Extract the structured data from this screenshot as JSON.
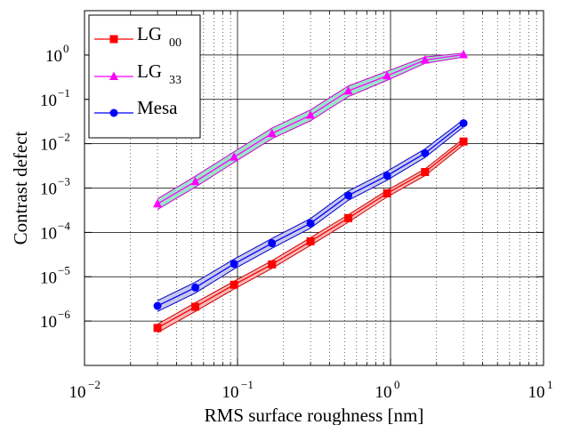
{
  "chart_data": {
    "type": "line",
    "xlabel": "RMS surface roughness [nm]",
    "ylabel": "Contrast defect",
    "x_scale": "log",
    "y_scale": "log",
    "xlim": [
      0.01,
      10
    ],
    "ylim": [
      1e-07,
      10
    ],
    "grid": true,
    "legend_position": "top-left",
    "x_ticks": [
      {
        "base": "10",
        "exp": "−2",
        "value": 0.01
      },
      {
        "base": "10",
        "exp": "−1",
        "value": 0.1
      },
      {
        "base": "10",
        "exp": "0",
        "value": 1
      },
      {
        "base": "10",
        "exp": "1",
        "value": 10
      }
    ],
    "y_ticks": [
      {
        "base": "10",
        "exp": "−6",
        "value": 1e-06
      },
      {
        "base": "10",
        "exp": "−5",
        "value": 1e-05
      },
      {
        "base": "10",
        "exp": "−4",
        "value": 0.0001
      },
      {
        "base": "10",
        "exp": "−3",
        "value": 0.001
      },
      {
        "base": "10",
        "exp": "−2",
        "value": 0.01
      },
      {
        "base": "10",
        "exp": "−1",
        "value": 0.1
      },
      {
        "base": "10",
        "exp": "0",
        "value": 1
      }
    ],
    "x": [
      0.03,
      0.053,
      0.095,
      0.168,
      0.3,
      0.53,
      0.95,
      1.68,
      3.0
    ],
    "series": [
      {
        "name": "LG00",
        "name_main": "LG",
        "name_sub": "00",
        "color": "#ff0000",
        "line_color": "#cc0000",
        "band_fill": "#f4b8b8",
        "marker": "square",
        "values": [
          7e-07,
          2.1e-06,
          6.6e-06,
          1.9e-05,
          6.3e-05,
          0.00021,
          0.00076,
          0.0023,
          0.0112
        ],
        "upper": [
          8.5e-07,
          2.6e-06,
          7.9e-06,
          2.3e-05,
          7.6e-05,
          0.00025,
          0.00089,
          0.0027,
          0.013
        ],
        "lower": [
          5.5e-07,
          1.65e-06,
          5.3e-06,
          1.55e-05,
          5.1e-05,
          0.00017,
          0.00063,
          0.0019,
          0.0094
        ]
      },
      {
        "name": "LG33",
        "name_main": "LG",
        "name_sub": "33",
        "color": "#ff00ff",
        "line_color": "#cc00cc",
        "band_fill": "#99e6c8",
        "marker": "triangle",
        "values": [
          0.00044,
          0.0014,
          0.005,
          0.017,
          0.044,
          0.155,
          0.34,
          0.77,
          1.02
        ],
        "upper": [
          0.00057,
          0.00185,
          0.0066,
          0.0225,
          0.058,
          0.2,
          0.43,
          0.9,
          1.1
        ],
        "lower": [
          0.00033,
          0.00105,
          0.0038,
          0.013,
          0.033,
          0.115,
          0.27,
          0.65,
          0.9
        ]
      },
      {
        "name": "Mesa",
        "name_main": "Mesa",
        "name_sub": "",
        "color": "#0000ff",
        "line_color": "#0000cc",
        "band_fill": "#c8c8ea",
        "marker": "circle",
        "values": [
          2.2e-06,
          5.7e-06,
          1.95e-05,
          5.7e-05,
          0.00016,
          0.00068,
          0.0019,
          0.0061,
          0.029
        ],
        "upper": [
          2.9e-06,
          7.5e-06,
          2.5e-05,
          7.3e-05,
          0.000205,
          0.00086,
          0.0024,
          0.0076,
          0.035
        ],
        "lower": [
          1.65e-06,
          4.3e-06,
          1.5e-05,
          4.4e-05,
          0.000125,
          0.00053,
          0.0015,
          0.0049,
          0.024
        ]
      }
    ]
  }
}
